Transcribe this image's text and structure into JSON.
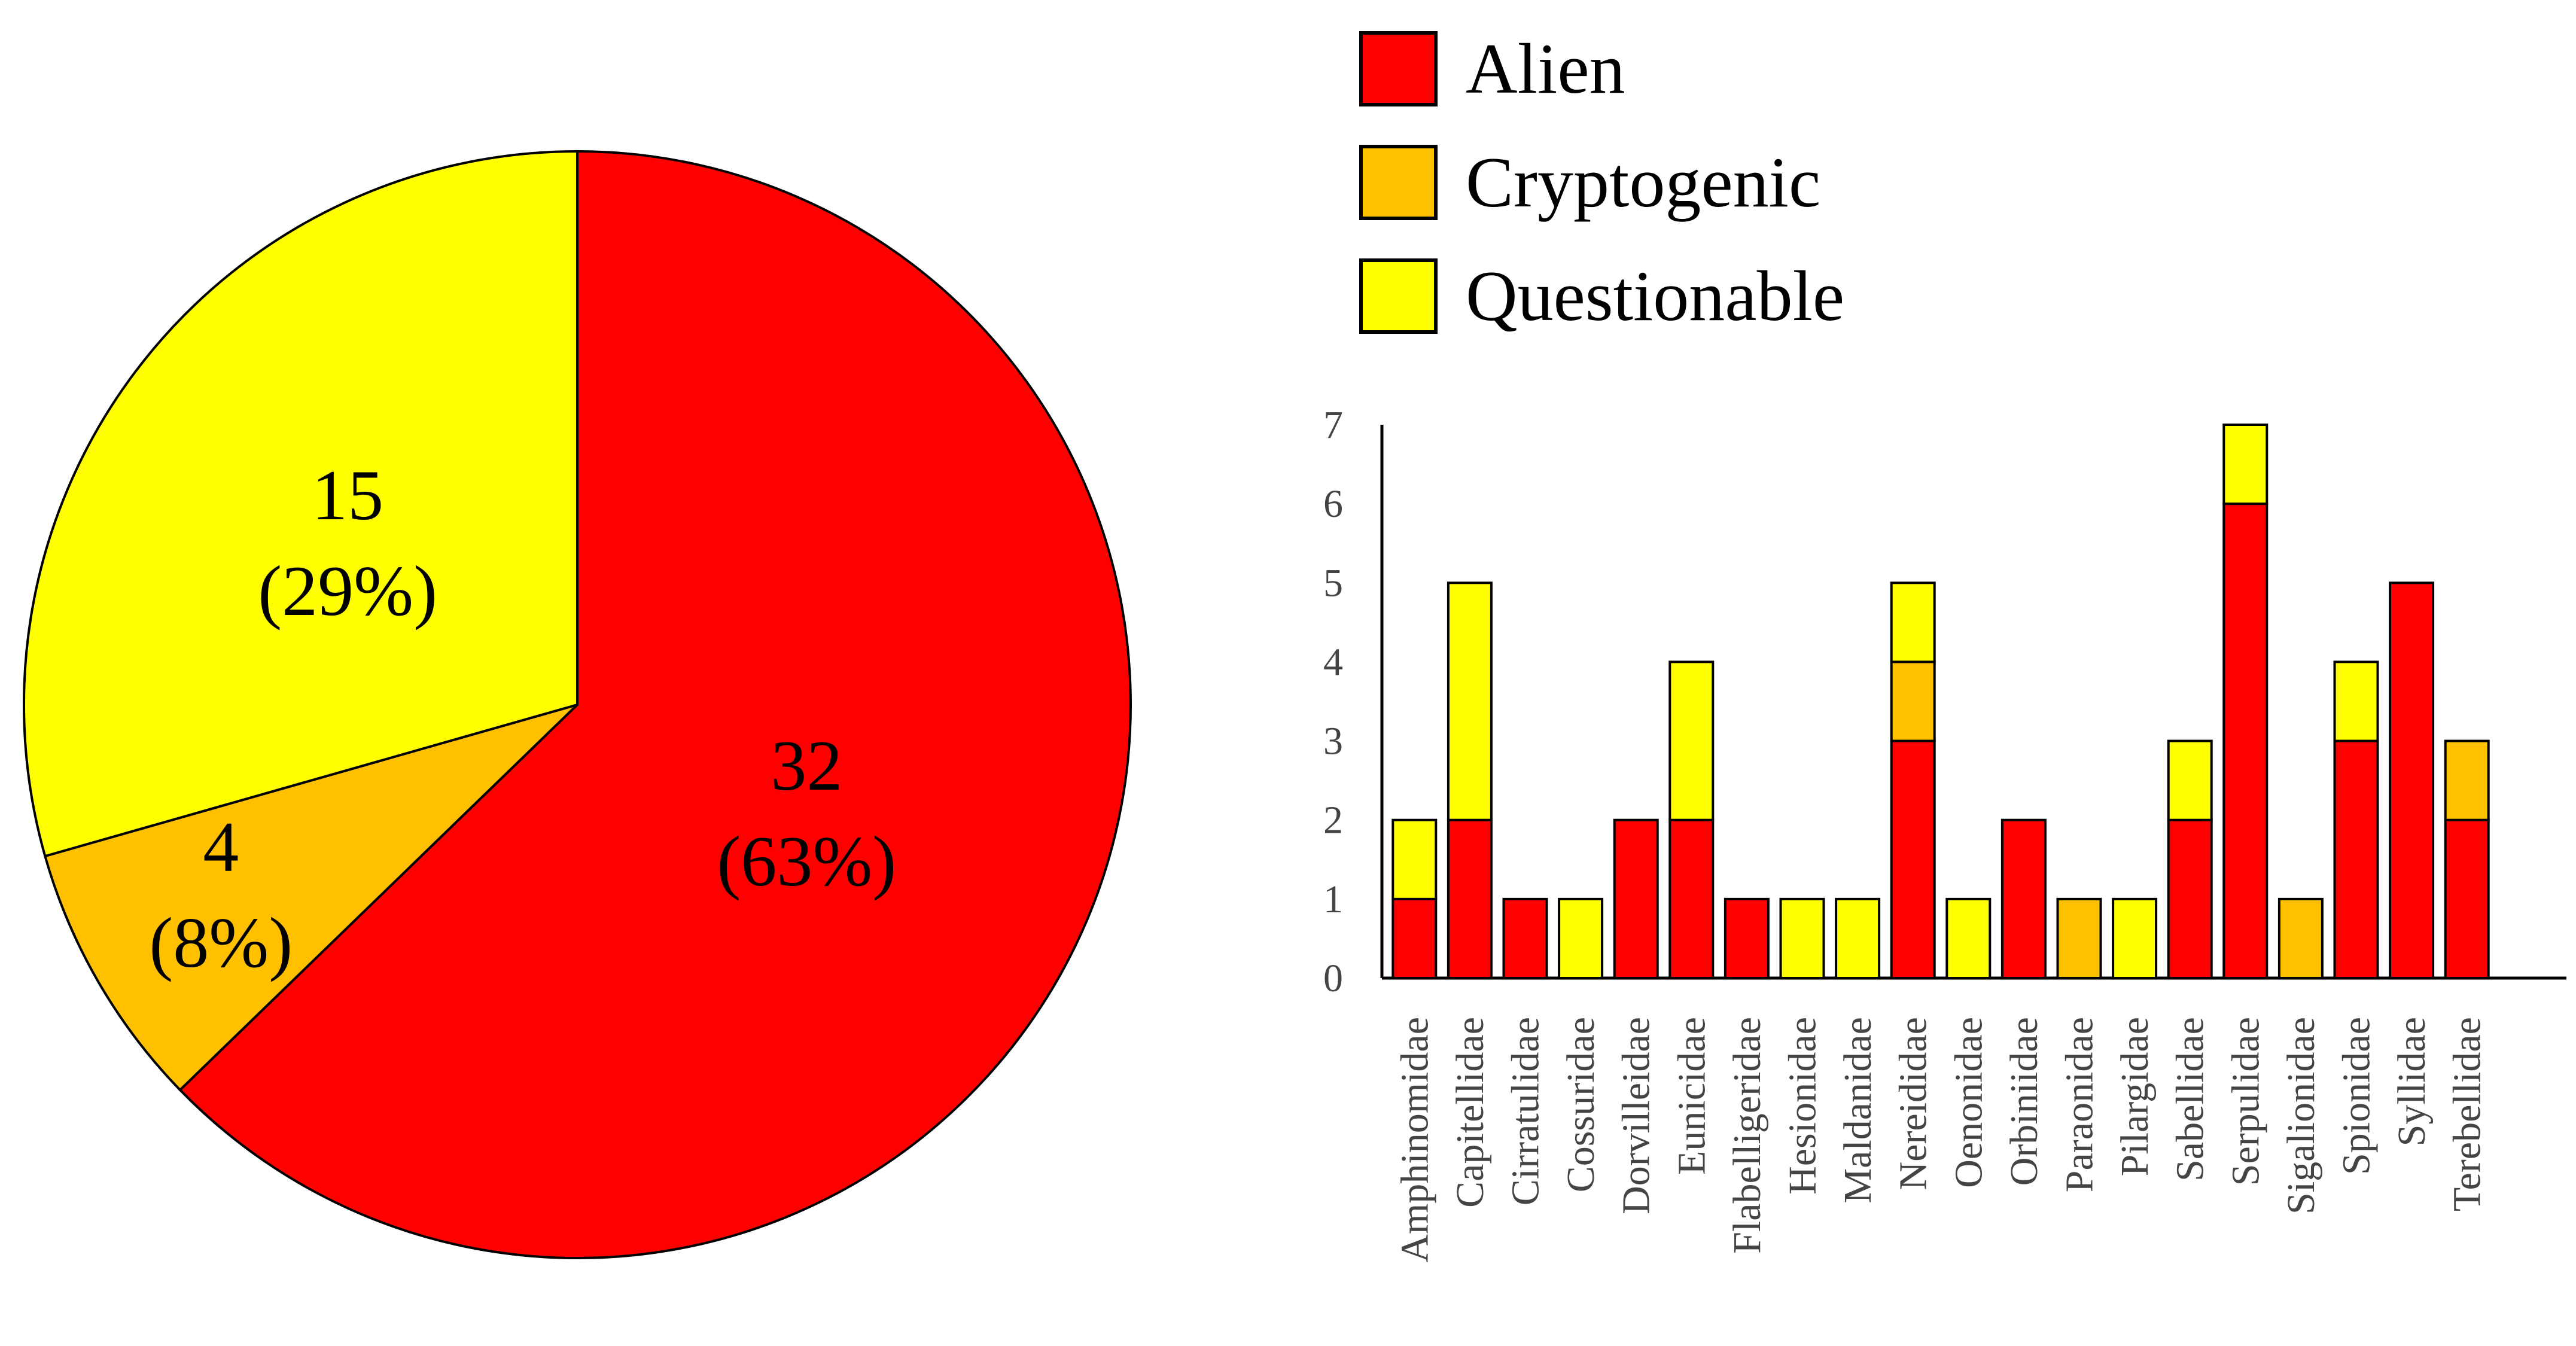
{
  "colors": {
    "alien": "#ff0000",
    "cryptogenic": "#ffc000",
    "questionable": "#ffff00",
    "outline": "#000000"
  },
  "legend": [
    {
      "key": "alien",
      "label": "Alien"
    },
    {
      "key": "cryptogenic",
      "label": "Cryptogenic"
    },
    {
      "key": "questionable",
      "label": "Questionable"
    }
  ],
  "chart_data": [
    {
      "type": "pie",
      "slices": [
        {
          "key": "alien",
          "name": "Alien",
          "value": 32,
          "label_count": "32",
          "label_pct": "(63%)"
        },
        {
          "key": "cryptogenic",
          "name": "Cryptogenic",
          "value": 4,
          "label_count": "4",
          "label_pct": "(8%)"
        },
        {
          "key": "questionable",
          "name": "Questionable",
          "value": 15,
          "label_count": "15",
          "label_pct": "(29%)"
        }
      ]
    },
    {
      "type": "bar",
      "stacked": true,
      "categories": [
        "Amphinomidae",
        "Capitellidae",
        "Cirratulidae",
        "Cossuridae",
        "Dorvilleidae",
        "Eunicidae",
        "Flabelligeridae",
        "Hesionidae",
        "Maldanidae",
        "Nereididae",
        "Oenonidae",
        "Orbiniidae",
        "Paraonidae",
        "Pilargidae",
        "Sabellidae",
        "Serpulidae",
        "Sigalionidae",
        "Spionidae",
        "Syllidae",
        "Terebellidae"
      ],
      "series": [
        {
          "key": "alien",
          "name": "Alien",
          "values": [
            1,
            2,
            1,
            0,
            2,
            2,
            1,
            0,
            0,
            3,
            0,
            2,
            0,
            0,
            2,
            6,
            0,
            3,
            5,
            2
          ]
        },
        {
          "key": "cryptogenic",
          "name": "Cryptogenic",
          "values": [
            0,
            0,
            0,
            0,
            0,
            0,
            0,
            0,
            0,
            1,
            0,
            0,
            1,
            0,
            0,
            0,
            1,
            0,
            0,
            1
          ]
        },
        {
          "key": "questionable",
          "name": "Questionable",
          "values": [
            1,
            3,
            0,
            1,
            0,
            2,
            0,
            1,
            1,
            1,
            1,
            0,
            0,
            1,
            1,
            1,
            0,
            1,
            0,
            0
          ]
        }
      ],
      "yticks": [
        "0",
        "1",
        "2",
        "3",
        "4",
        "5",
        "6",
        "7"
      ],
      "ylim": [
        0,
        7
      ],
      "grid": false,
      "legend_position": "top-right"
    }
  ]
}
